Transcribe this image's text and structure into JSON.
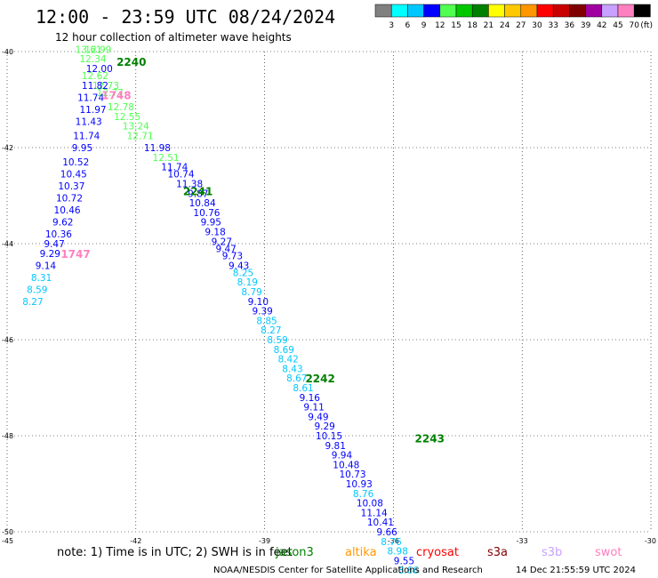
{
  "header": {
    "title": "12:00 - 23:59 UTC 08/24/2024",
    "subtitle": "12 hour collection of altimeter wave heights"
  },
  "legend": {
    "colors": [
      "#808080",
      "#00ffff",
      "#00c8ff",
      "#0000ff",
      "#50ff50",
      "#00c800",
      "#008000",
      "#ffff00",
      "#ffc800",
      "#ff9600",
      "#ff0000",
      "#c80000",
      "#800000",
      "#a000a0",
      "#c8a0ff",
      "#ff80c0",
      "#000000"
    ],
    "labels": [
      "3",
      "6",
      "9",
      "12",
      "15",
      "18",
      "21",
      "24",
      "27",
      "30",
      "33",
      "36",
      "39",
      "42",
      "45",
      "70"
    ],
    "unit": "(ft)"
  },
  "footer": {
    "note": "note:  1) Time is in UTC;  2) SWH is in feet",
    "credit": "NOAA/NESDIS Center for Satellite Applications and Research",
    "timestamp": "14 Dec 21:55:59 UTC 2024"
  },
  "satellites": [
    {
      "name": "jason3",
      "color": "#008000"
    },
    {
      "name": "altika",
      "color": "#ff9600"
    },
    {
      "name": "cryosat",
      "color": "#ff0000"
    },
    {
      "name": "s3a",
      "color": "#800000"
    },
    {
      "name": "s3b",
      "color": "#c8a0ff"
    },
    {
      "name": "swot",
      "color": "#ff80c0"
    }
  ],
  "chart_data": {
    "type": "scatter",
    "xlim": [
      -45,
      -30
    ],
    "ylim": [
      -50,
      -40
    ],
    "x_ticks": [
      "-45",
      "-42",
      "-39",
      "-36",
      "-33",
      "-30"
    ],
    "y_ticks": [
      "-40",
      "-42",
      "-44",
      "-46",
      "-48",
      "-50"
    ],
    "grid": true,
    "time_labels": [
      {
        "text": "2240",
        "lon": -42.45,
        "lat": -40.2,
        "color": "#008000"
      },
      {
        "text": "2241",
        "lon": -40.9,
        "lat": -42.9,
        "color": "#008000"
      },
      {
        "text": "2242",
        "lon": -38.05,
        "lat": -46.8,
        "color": "#008000"
      },
      {
        "text": "2243",
        "lon": -35.5,
        "lat": -48.05,
        "color": "#008000"
      },
      {
        "text": "1747",
        "lon": -43.75,
        "lat": -44.2,
        "color": "#ff80c0"
      },
      {
        "text": "1748",
        "lon": -42.8,
        "lat": -40.9,
        "color": "#ff80c0"
      }
    ],
    "points": [
      {
        "lon": -43.1,
        "lat": -39.95,
        "v": "13.61",
        "color": "#50ff50"
      },
      {
        "lon": -42.88,
        "lat": -39.95,
        "v": "12.99",
        "color": "#50ff50"
      },
      {
        "lon": -43.0,
        "lat": -40.15,
        "v": "12.34",
        "color": "#50ff50"
      },
      {
        "lon": -42.85,
        "lat": -40.35,
        "v": "12.00",
        "color": "#0000ff"
      },
      {
        "lon": -42.95,
        "lat": -40.5,
        "v": "12.62",
        "color": "#50ff50"
      },
      {
        "lon": -42.7,
        "lat": -40.7,
        "v": "12.73",
        "color": "#50ff50"
      },
      {
        "lon": -42.95,
        "lat": -40.7,
        "v": "11.82",
        "color": "#0000ff"
      },
      {
        "lon": -42.6,
        "lat": -40.85,
        "v": "12.77",
        "color": "#50ff50"
      },
      {
        "lon": -43.05,
        "lat": -40.95,
        "v": "11.74",
        "color": "#0000ff"
      },
      {
        "lon": -42.35,
        "lat": -41.15,
        "v": "12.78",
        "color": "#50ff50"
      },
      {
        "lon": -43.0,
        "lat": -41.2,
        "v": "11.97",
        "color": "#0000ff"
      },
      {
        "lon": -42.2,
        "lat": -41.35,
        "v": "12.55",
        "color": "#50ff50"
      },
      {
        "lon": -43.1,
        "lat": -41.45,
        "v": "11.43",
        "color": "#0000ff"
      },
      {
        "lon": -42.0,
        "lat": -41.55,
        "v": "13.24",
        "color": "#50ff50"
      },
      {
        "lon": -43.15,
        "lat": -41.75,
        "v": "11.74",
        "color": "#0000ff"
      },
      {
        "lon": -41.9,
        "lat": -41.75,
        "v": "12.71",
        "color": "#50ff50"
      },
      {
        "lon": -43.25,
        "lat": -42.0,
        "v": "9.95",
        "color": "#0000ff"
      },
      {
        "lon": -41.5,
        "lat": -42.0,
        "v": "11.98",
        "color": "#0000ff"
      },
      {
        "lon": -41.3,
        "lat": -42.2,
        "v": "12.51",
        "color": "#50ff50"
      },
      {
        "lon": -43.4,
        "lat": -42.3,
        "v": "10.52",
        "color": "#0000ff"
      },
      {
        "lon": -41.1,
        "lat": -42.4,
        "v": "11.74",
        "color": "#0000ff"
      },
      {
        "lon": -43.45,
        "lat": -42.55,
        "v": "10.45",
        "color": "#0000ff"
      },
      {
        "lon": -40.95,
        "lat": -42.55,
        "v": "10.74",
        "color": "#0000ff"
      },
      {
        "lon": -43.5,
        "lat": -42.8,
        "v": "10.37",
        "color": "#0000ff"
      },
      {
        "lon": -40.75,
        "lat": -42.75,
        "v": "11.38",
        "color": "#0000ff"
      },
      {
        "lon": -40.55,
        "lat": -42.95,
        "v": "9.87",
        "color": "#0000ff"
      },
      {
        "lon": -43.55,
        "lat": -43.05,
        "v": "10.72",
        "color": "#0000ff"
      },
      {
        "lon": -40.45,
        "lat": -43.15,
        "v": "10.84",
        "color": "#0000ff"
      },
      {
        "lon": -43.6,
        "lat": -43.3,
        "v": "10.46",
        "color": "#0000ff"
      },
      {
        "lon": -40.35,
        "lat": -43.35,
        "v": "10.76",
        "color": "#0000ff"
      },
      {
        "lon": -40.25,
        "lat": -43.55,
        "v": "9.95",
        "color": "#0000ff"
      },
      {
        "lon": -43.7,
        "lat": -43.55,
        "v": "9.62",
        "color": "#0000ff"
      },
      {
        "lon": -40.15,
        "lat": -43.75,
        "v": "9.18",
        "color": "#0000ff"
      },
      {
        "lon": -43.8,
        "lat": -43.8,
        "v": "10.36",
        "color": "#0000ff"
      },
      {
        "lon": -40.0,
        "lat": -43.95,
        "v": "9.27",
        "color": "#0000ff"
      },
      {
        "lon": -43.9,
        "lat": -44.0,
        "v": "9.47",
        "color": "#0000ff"
      },
      {
        "lon": -39.9,
        "lat": -44.1,
        "v": "9.47",
        "color": "#0000ff"
      },
      {
        "lon": -44.0,
        "lat": -44.2,
        "v": "9.29",
        "color": "#0000ff"
      },
      {
        "lon": -39.75,
        "lat": -44.25,
        "v": "9.73",
        "color": "#0000ff"
      },
      {
        "lon": -39.6,
        "lat": -44.45,
        "v": "9.43",
        "color": "#0000ff"
      },
      {
        "lon": -44.1,
        "lat": -44.45,
        "v": "9.14",
        "color": "#0000ff"
      },
      {
        "lon": -39.5,
        "lat": -44.6,
        "v": "8.25",
        "color": "#00c8ff"
      },
      {
        "lon": -44.2,
        "lat": -44.7,
        "v": "8.31",
        "color": "#00c8ff"
      },
      {
        "lon": -39.4,
        "lat": -44.8,
        "v": "8.19",
        "color": "#00c8ff"
      },
      {
        "lon": -44.3,
        "lat": -44.95,
        "v": "8.59",
        "color": "#00c8ff"
      },
      {
        "lon": -39.3,
        "lat": -45.0,
        "v": "8.79",
        "color": "#00c8ff"
      },
      {
        "lon": -39.15,
        "lat": -45.2,
        "v": "9.10",
        "color": "#0000ff"
      },
      {
        "lon": -44.4,
        "lat": -45.2,
        "v": "8.27",
        "color": "#00c8ff"
      },
      {
        "lon": -39.05,
        "lat": -45.4,
        "v": "9.39",
        "color": "#0000ff"
      },
      {
        "lon": -38.95,
        "lat": -45.6,
        "v": "8.85",
        "color": "#00c8ff"
      },
      {
        "lon": -38.85,
        "lat": -45.8,
        "v": "8.27",
        "color": "#00c8ff"
      },
      {
        "lon": -38.7,
        "lat": -46.0,
        "v": "8.59",
        "color": "#00c8ff"
      },
      {
        "lon": -38.55,
        "lat": -46.2,
        "v": "8.69",
        "color": "#00c8ff"
      },
      {
        "lon": -38.45,
        "lat": -46.4,
        "v": "8.42",
        "color": "#00c8ff"
      },
      {
        "lon": -38.35,
        "lat": -46.6,
        "v": "8.43",
        "color": "#00c8ff"
      },
      {
        "lon": -38.25,
        "lat": -46.8,
        "v": "8.67",
        "color": "#00c8ff"
      },
      {
        "lon": -38.1,
        "lat": -47.0,
        "v": "8.61",
        "color": "#00c8ff"
      },
      {
        "lon": -37.95,
        "lat": -47.2,
        "v": "9.16",
        "color": "#0000ff"
      },
      {
        "lon": -37.85,
        "lat": -47.4,
        "v": "9.11",
        "color": "#0000ff"
      },
      {
        "lon": -37.75,
        "lat": -47.6,
        "v": "9.49",
        "color": "#0000ff"
      },
      {
        "lon": -37.6,
        "lat": -47.8,
        "v": "9.29",
        "color": "#0000ff"
      },
      {
        "lon": -37.5,
        "lat": -48.0,
        "v": "10.15",
        "color": "#0000ff"
      },
      {
        "lon": -37.35,
        "lat": -48.2,
        "v": "9.81",
        "color": "#0000ff"
      },
      {
        "lon": -37.2,
        "lat": -48.4,
        "v": "9.94",
        "color": "#0000ff"
      },
      {
        "lon": -37.1,
        "lat": -48.6,
        "v": "10.48",
        "color": "#0000ff"
      },
      {
        "lon": -36.95,
        "lat": -48.8,
        "v": "10.73",
        "color": "#0000ff"
      },
      {
        "lon": -36.8,
        "lat": -49.0,
        "v": "10.93",
        "color": "#0000ff"
      },
      {
        "lon": -36.7,
        "lat": -49.2,
        "v": "8.76",
        "color": "#00c8ff"
      },
      {
        "lon": -36.55,
        "lat": -49.4,
        "v": "10.08",
        "color": "#0000ff"
      },
      {
        "lon": -36.45,
        "lat": -49.6,
        "v": "11.14",
        "color": "#0000ff"
      },
      {
        "lon": -36.3,
        "lat": -49.8,
        "v": "10.41",
        "color": "#0000ff"
      },
      {
        "lon": -36.15,
        "lat": -50.0,
        "v": "9.66",
        "color": "#0000ff"
      },
      {
        "lon": -36.05,
        "lat": -50.2,
        "v": "8.76",
        "color": "#00c8ff"
      },
      {
        "lon": -35.9,
        "lat": -50.4,
        "v": "8.98",
        "color": "#00c8ff"
      },
      {
        "lon": -35.75,
        "lat": -50.6,
        "v": "9.55",
        "color": "#0000ff"
      },
      {
        "lon": -35.65,
        "lat": -50.8,
        "v": "8.66",
        "color": "#00c8ff"
      }
    ]
  }
}
